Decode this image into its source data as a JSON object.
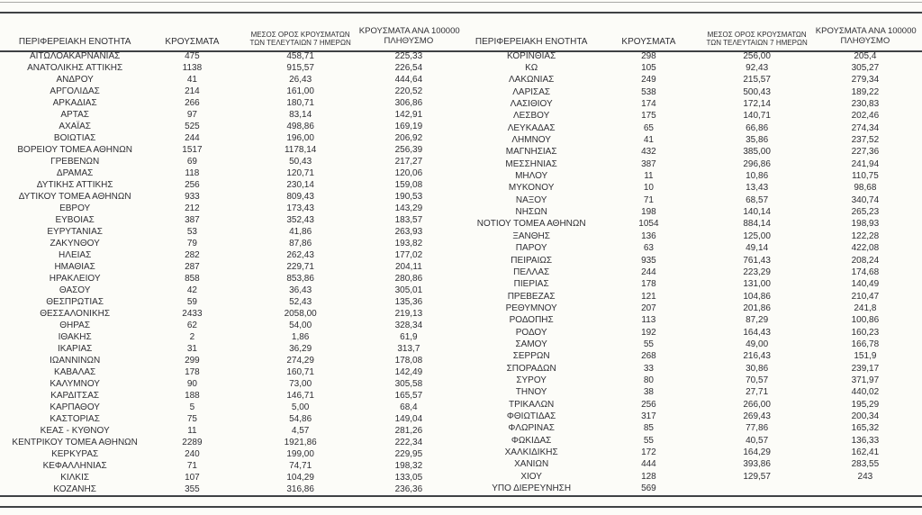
{
  "colors": {
    "text": "#2e2e33",
    "rule_dark": "#3f4245",
    "rule_light": "#a9a9a5",
    "background": "#fcfcf8"
  },
  "table": {
    "columns": {
      "region": "ΠΕΡΙΦΕΡΕΙΑΚΗ ΕΝΟΤΗΤΑ",
      "cases": "ΚΡΟΥΣΜΑΤΑ",
      "avg7_line1": "ΜΕΣΟΣ ΟΡΟΣ ΚΡΟΥΣΜΑΤΩΝ",
      "avg7_line2": "ΤΩΝ ΤΕΛΕΥΤΑΙΩΝ 7 ΗΜΕΡΩΝ",
      "per100k_line1": "ΚΡΟΥΣΜΑΤΑ ΑΝΑ 100000",
      "per100k_line2": "ΠΛΗΘΥΣΜΟ"
    },
    "left_rows": [
      [
        "ΑΙΤΩΛΟΑΚΑΡΝΑΝΙΑΣ",
        "475",
        "458,71",
        "225,33"
      ],
      [
        "ΑΝΑΤΟΛΙΚΗΣ ΑΤΤΙΚΗΣ",
        "1138",
        "915,57",
        "226,54"
      ],
      [
        "ΑΝΔΡΟΥ",
        "41",
        "26,43",
        "444,64"
      ],
      [
        "ΑΡΓΟΛΙΔΑΣ",
        "214",
        "161,00",
        "220,52"
      ],
      [
        "ΑΡΚΑΔΙΑΣ",
        "266",
        "180,71",
        "306,86"
      ],
      [
        "ΑΡΤΑΣ",
        "97",
        "83,14",
        "142,91"
      ],
      [
        "ΑΧΑΪΑΣ",
        "525",
        "498,86",
        "169,19"
      ],
      [
        "ΒΟΙΩΤΙΑΣ",
        "244",
        "196,00",
        "206,92"
      ],
      [
        "ΒΟΡΕΙΟΥ ΤΟΜΕΑ ΑΘΗΝΩΝ",
        "1517",
        "1178,14",
        "256,39"
      ],
      [
        "ΓΡΕΒΕΝΩΝ",
        "69",
        "50,43",
        "217,27"
      ],
      [
        "ΔΡΑΜΑΣ",
        "118",
        "120,71",
        "120,06"
      ],
      [
        "ΔΥΤΙΚΗΣ ΑΤΤΙΚΗΣ",
        "256",
        "230,14",
        "159,08"
      ],
      [
        "ΔΥΤΙΚΟΥ ΤΟΜΕΑ ΑΘΗΝΩΝ",
        "933",
        "809,43",
        "190,53"
      ],
      [
        "ΕΒΡΟΥ",
        "212",
        "173,43",
        "143,29"
      ],
      [
        "ΕΥΒΟΙΑΣ",
        "387",
        "352,43",
        "183,57"
      ],
      [
        "ΕΥΡΥΤΑΝΙΑΣ",
        "53",
        "41,86",
        "263,93"
      ],
      [
        "ΖΑΚΥΝΘΟΥ",
        "79",
        "87,86",
        "193,82"
      ],
      [
        "ΗΛΕΙΑΣ",
        "282",
        "262,43",
        "177,02"
      ],
      [
        "ΗΜΑΘΙΑΣ",
        "287",
        "229,71",
        "204,11"
      ],
      [
        "ΗΡΑΚΛΕΙΟΥ",
        "858",
        "853,86",
        "280,86"
      ],
      [
        "ΘΑΣΟΥ",
        "42",
        "36,43",
        "305,01"
      ],
      [
        "ΘΕΣΠΡΩΤΙΑΣ",
        "59",
        "52,43",
        "135,36"
      ],
      [
        "ΘΕΣΣΑΛΟΝΙΚΗΣ",
        "2433",
        "2058,00",
        "219,13"
      ],
      [
        "ΘΗΡΑΣ",
        "62",
        "54,00",
        "328,34"
      ],
      [
        "ΙΘΑΚΗΣ",
        "2",
        "1,86",
        "61,9"
      ],
      [
        "ΙΚΑΡΙΑΣ",
        "31",
        "36,29",
        "313,7"
      ],
      [
        "ΙΩΑΝΝΙΝΩΝ",
        "299",
        "274,29",
        "178,08"
      ],
      [
        "ΚΑΒΑΛΑΣ",
        "178",
        "160,71",
        "142,49"
      ],
      [
        "ΚΑΛΥΜΝΟΥ",
        "90",
        "73,00",
        "305,58"
      ],
      [
        "ΚΑΡΔΙΤΣΑΣ",
        "188",
        "146,71",
        "165,57"
      ],
      [
        "ΚΑΡΠΑΘΟΥ",
        "5",
        "5,00",
        "68,4"
      ],
      [
        "ΚΑΣΤΟΡΙΑΣ",
        "75",
        "54,86",
        "149,04"
      ],
      [
        "ΚΕΑΣ - ΚΥΘΝΟΥ",
        "11",
        "4,57",
        "281,26"
      ],
      [
        "ΚΕΝΤΡΙΚΟΥ ΤΟΜΕΑ ΑΘΗΝΩΝ",
        "2289",
        "1921,86",
        "222,34"
      ],
      [
        "ΚΕΡΚΥΡΑΣ",
        "240",
        "199,00",
        "229,95"
      ],
      [
        "ΚΕΦΑΛΛΗΝΙΑΣ",
        "71",
        "74,71",
        "198,32"
      ],
      [
        "ΚΙΛΚΙΣ",
        "107",
        "104,29",
        "133,05"
      ],
      [
        "ΚΟΖΑΝΗΣ",
        "355",
        "316,86",
        "236,36"
      ]
    ],
    "right_rows": [
      [
        "ΚΟΡΙΝΘΙΑΣ",
        "298",
        "256,00",
        "205,4"
      ],
      [
        "ΚΩ",
        "105",
        "92,43",
        "305,27"
      ],
      [
        "ΛΑΚΩΝΙΑΣ",
        "249",
        "215,57",
        "279,34"
      ],
      [
        "ΛΑΡΙΣΑΣ",
        "538",
        "500,43",
        "189,22"
      ],
      [
        "ΛΑΣΙΘΙΟΥ",
        "174",
        "172,14",
        "230,83"
      ],
      [
        "ΛΕΣΒΟΥ",
        "175",
        "140,71",
        "202,46"
      ],
      [
        "ΛΕΥΚΑΔΑΣ",
        "65",
        "66,86",
        "274,34"
      ],
      [
        "ΛΗΜΝΟΥ",
        "41",
        "35,86",
        "237,52"
      ],
      [
        "ΜΑΓΝΗΣΙΑΣ",
        "432",
        "385,00",
        "227,36"
      ],
      [
        "ΜΕΣΣΗΝΙΑΣ",
        "387",
        "296,86",
        "241,94"
      ],
      [
        "ΜΗΛΟΥ",
        "11",
        "10,86",
        "110,75"
      ],
      [
        "ΜΥΚΟΝΟΥ",
        "10",
        "13,43",
        "98,68"
      ],
      [
        "ΝΑΞΟΥ",
        "71",
        "68,57",
        "340,74"
      ],
      [
        "ΝΗΣΩΝ",
        "198",
        "140,14",
        "265,23"
      ],
      [
        "ΝΟΤΙΟΥ ΤΟΜΕΑ ΑΘΗΝΩΝ",
        "1054",
        "884,14",
        "198,93"
      ],
      [
        "ΞΑΝΘΗΣ",
        "136",
        "125,00",
        "122,28"
      ],
      [
        "ΠΑΡΟΥ",
        "63",
        "49,14",
        "422,08"
      ],
      [
        "ΠΕΙΡΑΙΩΣ",
        "935",
        "761,43",
        "208,24"
      ],
      [
        "ΠΕΛΛΑΣ",
        "244",
        "223,29",
        "174,68"
      ],
      [
        "ΠΙΕΡΙΑΣ",
        "178",
        "131,00",
        "140,49"
      ],
      [
        "ΠΡΕΒΕΖΑΣ",
        "121",
        "104,86",
        "210,47"
      ],
      [
        "ΡΕΘΥΜΝΟΥ",
        "207",
        "201,86",
        "241,8"
      ],
      [
        "ΡΟΔΟΠΗΣ",
        "113",
        "87,29",
        "100,86"
      ],
      [
        "ΡΟΔΟΥ",
        "192",
        "164,43",
        "160,23"
      ],
      [
        "ΣΑΜΟΥ",
        "55",
        "49,00",
        "166,78"
      ],
      [
        "ΣΕΡΡΩΝ",
        "268",
        "216,43",
        "151,9"
      ],
      [
        "ΣΠΟΡΑΔΩΝ",
        "33",
        "30,86",
        "239,17"
      ],
      [
        "ΣΥΡΟΥ",
        "80",
        "70,57",
        "371,97"
      ],
      [
        "ΤΗΝΟΥ",
        "38",
        "27,71",
        "440,02"
      ],
      [
        "ΤΡΙΚΑΛΩΝ",
        "256",
        "266,00",
        "195,29"
      ],
      [
        "ΦΘΙΩΤΙΔΑΣ",
        "317",
        "269,43",
        "200,34"
      ],
      [
        "ΦΛΩΡΙΝΑΣ",
        "85",
        "77,86",
        "165,32"
      ],
      [
        "ΦΩΚΙΔΑΣ",
        "55",
        "40,57",
        "136,33"
      ],
      [
        "ΧΑΛΚΙΔΙΚΗΣ",
        "172",
        "164,29",
        "162,41"
      ],
      [
        "ΧΑΝΙΩΝ",
        "444",
        "393,86",
        "283,55"
      ],
      [
        "ΧΙΟΥ",
        "128",
        "129,57",
        "243"
      ],
      [
        "ΥΠΟ ΔΙΕΡΕΥΝΗΣΗ",
        "569",
        "",
        ""
      ]
    ]
  }
}
